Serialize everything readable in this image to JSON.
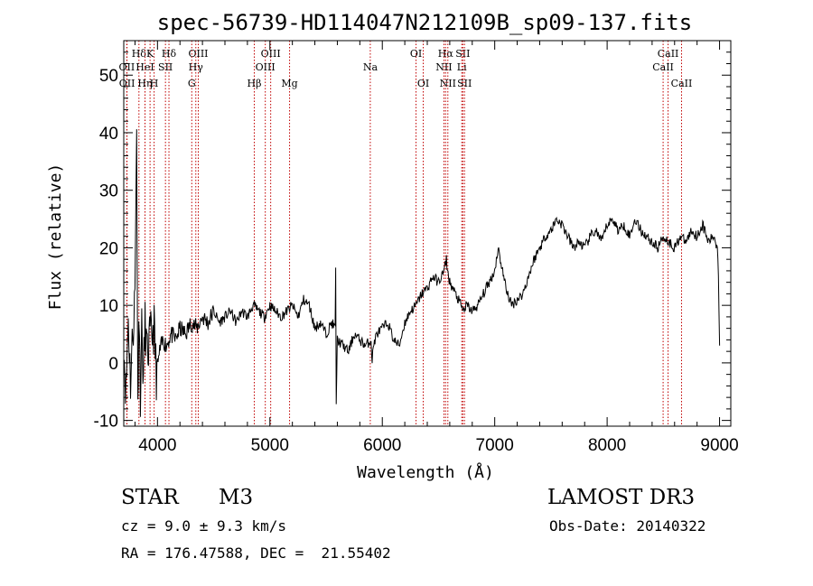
{
  "chart_data": {
    "type": "line",
    "title": "spec-56739-HD114047N212109B_sp09-137.fits",
    "xlabel": "Wavelength (Å)",
    "ylabel": "Flux (relative)",
    "xlim": [
      3700,
      9100
    ],
    "ylim": [
      -11,
      56
    ],
    "xticks": [
      4000,
      5000,
      6000,
      7000,
      8000,
      9000
    ],
    "yticks": [
      -10,
      0,
      10,
      20,
      30,
      40,
      50
    ],
    "line_color": "#000000",
    "marker_color": "#c00000",
    "grid": false,
    "spectrum": {
      "x": [
        3700,
        3720,
        3740,
        3760,
        3780,
        3800,
        3815,
        3825,
        3833,
        3840,
        3848,
        3860,
        3875,
        3890,
        3910,
        3930,
        3950,
        3970,
        3990,
        4020,
        4050,
        4080,
        4120,
        4160,
        4200,
        4250,
        4300,
        4350,
        4400,
        4450,
        4500,
        4550,
        4600,
        4650,
        4700,
        4750,
        4800,
        4850,
        4900,
        4950,
        5000,
        5050,
        5100,
        5150,
        5200,
        5250,
        5300,
        5350,
        5400,
        5450,
        5500,
        5550,
        5580,
        5585,
        5590,
        5600,
        5650,
        5700,
        5750,
        5800,
        5850,
        5900,
        5910,
        5920,
        5950,
        6000,
        6050,
        6100,
        6150,
        6200,
        6250,
        6300,
        6350,
        6400,
        6450,
        6500,
        6550,
        6570,
        6580,
        6600,
        6650,
        6700,
        6720,
        6750,
        6800,
        6850,
        6900,
        6950,
        7000,
        7030,
        7060,
        7100,
        7150,
        7200,
        7250,
        7300,
        7350,
        7400,
        7450,
        7500,
        7550,
        7600,
        7650,
        7700,
        7750,
        7800,
        7850,
        7900,
        7950,
        8000,
        8050,
        8100,
        8150,
        8200,
        8250,
        8300,
        8350,
        8400,
        8450,
        8500,
        8550,
        8600,
        8650,
        8700,
        8750,
        8800,
        8850,
        8900,
        8950,
        8980,
        8990,
        9000
      ],
      "y": [
        3,
        -5,
        8,
        -3,
        5,
        12,
        43,
        -9,
        10,
        4,
        -5,
        6,
        -3,
        7,
        1,
        4,
        5,
        6,
        -2,
        2,
        4,
        3,
        5,
        4,
        6,
        5,
        7,
        6,
        8,
        7,
        9,
        7,
        8,
        9,
        7,
        9,
        8,
        10,
        9,
        8,
        10,
        9,
        8,
        9,
        10,
        8,
        11,
        10,
        6,
        7,
        5,
        7,
        6,
        16,
        -7,
        4,
        3,
        2,
        5,
        4,
        3,
        4,
        0,
        3,
        5,
        6,
        7,
        4,
        3,
        7,
        9,
        10,
        12,
        13,
        15,
        14,
        16,
        18,
        16,
        14,
        12,
        10,
        9,
        10,
        9,
        10,
        12,
        14,
        16,
        20,
        17,
        13,
        10,
        11,
        12,
        15,
        18,
        20,
        22,
        23,
        25,
        24,
        22,
        20,
        21,
        20,
        22,
        23,
        21,
        24,
        25,
        23,
        24,
        22,
        25,
        23,
        22,
        21,
        20,
        22,
        21,
        20,
        22,
        21,
        23,
        22,
        24,
        21,
        22,
        20,
        16,
        3
      ],
      "x_unit": "Å"
    },
    "line_markers": [
      {
        "label": "Hδ",
        "wavelength": 3835,
        "row": 1
      },
      {
        "label": "OII",
        "wavelength": 3727,
        "row": 2
      },
      {
        "label": "OII",
        "wavelength": 3729,
        "row": 3
      },
      {
        "label": "K",
        "wavelength": 3934,
        "row": 1
      },
      {
        "label": "HeI",
        "wavelength": 3889,
        "row": 2
      },
      {
        "label": "Hη",
        "wavelength": 3889,
        "row": 3
      },
      {
        "label": "SII",
        "wavelength": 4071,
        "row": 2
      },
      {
        "label": "H",
        "wavelength": 3970,
        "row": 3
      },
      {
        "label": "Hδ",
        "wavelength": 4102,
        "row": 1
      },
      {
        "label": "OIII",
        "wavelength": 4363,
        "row": 1
      },
      {
        "label": "Hγ",
        "wavelength": 4341,
        "row": 2
      },
      {
        "label": "G",
        "wavelength": 4305,
        "row": 3
      },
      {
        "label": "Hβ",
        "wavelength": 4861,
        "row": 3
      },
      {
        "label": "OIII",
        "wavelength": 5007,
        "row": 1
      },
      {
        "label": "OIII",
        "wavelength": 4959,
        "row": 2
      },
      {
        "label": "Mg",
        "wavelength": 5175,
        "row": 3
      },
      {
        "label": "Na",
        "wavelength": 5893,
        "row": 2
      },
      {
        "label": "OI",
        "wavelength": 6300,
        "row": 1
      },
      {
        "label": "OI",
        "wavelength": 6364,
        "row": 3
      },
      {
        "label": "Hα",
        "wavelength": 6563,
        "row": 1
      },
      {
        "label": "NII",
        "wavelength": 6548,
        "row": 2
      },
      {
        "label": "NII",
        "wavelength": 6583,
        "row": 3
      },
      {
        "label": "SII",
        "wavelength": 6716,
        "row": 1
      },
      {
        "label": "Li",
        "wavelength": 6707,
        "row": 2
      },
      {
        "label": "SII",
        "wavelength": 6731,
        "row": 3
      },
      {
        "label": "CaII",
        "wavelength": 8542,
        "row": 1
      },
      {
        "label": "CaII",
        "wavelength": 8498,
        "row": 2
      },
      {
        "label": "CaII",
        "wavelength": 8662,
        "row": 3
      }
    ]
  },
  "info": {
    "object_class": "STAR",
    "subclass": "M3",
    "cz": "cz = 9.0 ± 9.3 km/s",
    "coords": "RA = 176.47588, DEC =  21.55402",
    "survey": "LAMOST DR3",
    "obs_date": "Obs-Date: 20140322"
  }
}
